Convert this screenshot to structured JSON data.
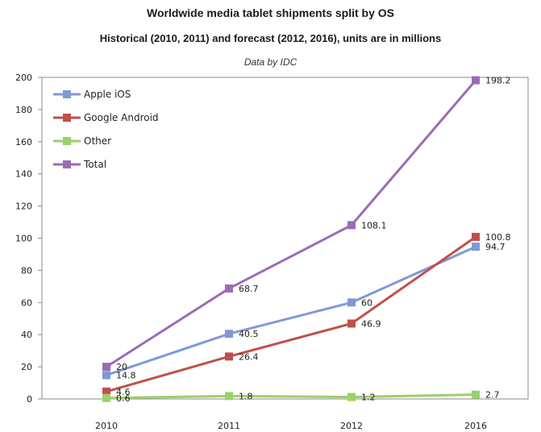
{
  "chart_data": {
    "type": "line",
    "title": "Worldwide media tablet shipments split by OS",
    "subtitle": "Historical (2010, 2011) and forecast (2012, 2016), units are in millions",
    "source_note": "Data by IDC",
    "categories": [
      "2010",
      "2011",
      "2012",
      "2016"
    ],
    "ylim": [
      0,
      200
    ],
    "yticks": [
      0,
      20,
      40,
      60,
      80,
      100,
      120,
      140,
      160,
      180,
      200
    ],
    "grid": false,
    "legend_position": "top-left",
    "series": [
      {
        "name": "Apple iOS",
        "color": "#7f9ad3",
        "values": [
          14.8,
          40.5,
          60,
          94.7
        ],
        "labels": [
          "14.8",
          "40.5",
          "60",
          "94.7"
        ]
      },
      {
        "name": "Google Android",
        "color": "#c0504d",
        "values": [
          4.6,
          26.4,
          46.9,
          100.8
        ],
        "labels": [
          "4.6",
          "26.4",
          "46.9",
          "100.8"
        ]
      },
      {
        "name": "Other",
        "color": "#9bd16a",
        "values": [
          0.6,
          1.8,
          1.2,
          2.7
        ],
        "labels": [
          "0.6",
          "1.8",
          "1.2",
          "2.7"
        ]
      },
      {
        "name": "Total",
        "color": "#9a6cb7",
        "values": [
          20,
          68.7,
          108.1,
          198.2
        ],
        "labels": [
          "20",
          "68.7",
          "108.1",
          "198.2"
        ]
      }
    ]
  }
}
